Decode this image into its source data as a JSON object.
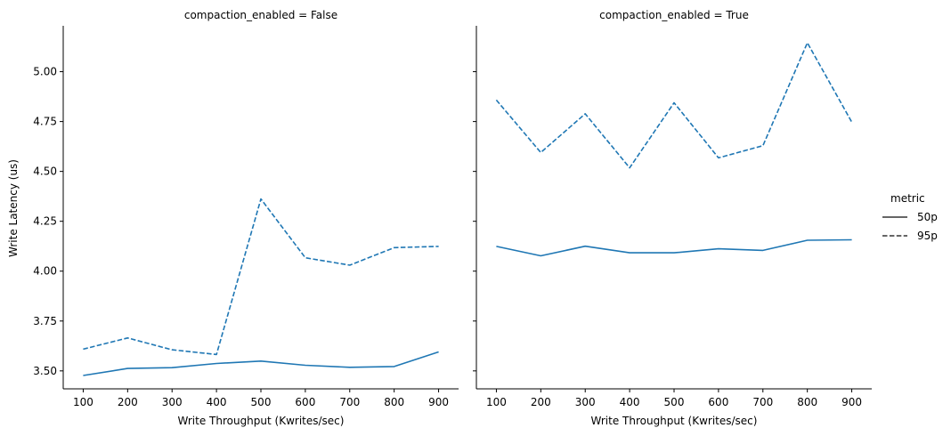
{
  "chart_data": {
    "type": "line",
    "xlabel": "Write Throughput (Kwrites/sec)",
    "ylabel": "Write Latency (us)",
    "x": [
      100,
      200,
      300,
      400,
      500,
      600,
      700,
      800,
      900
    ],
    "xticks": [
      "100",
      "200",
      "300",
      "400",
      "500",
      "600",
      "700",
      "800",
      "900"
    ],
    "yticks": [
      "3.50",
      "3.75",
      "4.00",
      "4.25",
      "4.50",
      "4.75",
      "5.00"
    ],
    "ylim": [
      3.41,
      5.23
    ],
    "xlim": [
      55,
      945
    ],
    "color": "#1f77b4",
    "legend": {
      "title": "metric",
      "placement": "right",
      "entries": [
        {
          "label": "50p",
          "style": "solid"
        },
        {
          "label": "95p",
          "style": "dashed"
        }
      ]
    },
    "panels": [
      {
        "title": "compaction_enabled = False",
        "series": [
          {
            "name": "50p",
            "values": [
              3.477,
              3.512,
              3.516,
              3.537,
              3.549,
              3.528,
              3.518,
              3.522,
              3.595
            ]
          },
          {
            "name": "95p",
            "values": [
              3.609,
              3.665,
              3.606,
              3.582,
              4.362,
              4.067,
              4.03,
              4.118,
              4.124
            ]
          }
        ]
      },
      {
        "title": "compaction_enabled = True",
        "series": [
          {
            "name": "50p",
            "values": [
              4.124,
              4.077,
              4.125,
              4.092,
              4.092,
              4.112,
              4.104,
              4.155,
              4.157
            ]
          },
          {
            "name": "95p",
            "values": [
              4.858,
              4.595,
              4.789,
              4.518,
              4.844,
              4.568,
              4.629,
              5.145,
              4.747
            ]
          }
        ]
      }
    ]
  }
}
